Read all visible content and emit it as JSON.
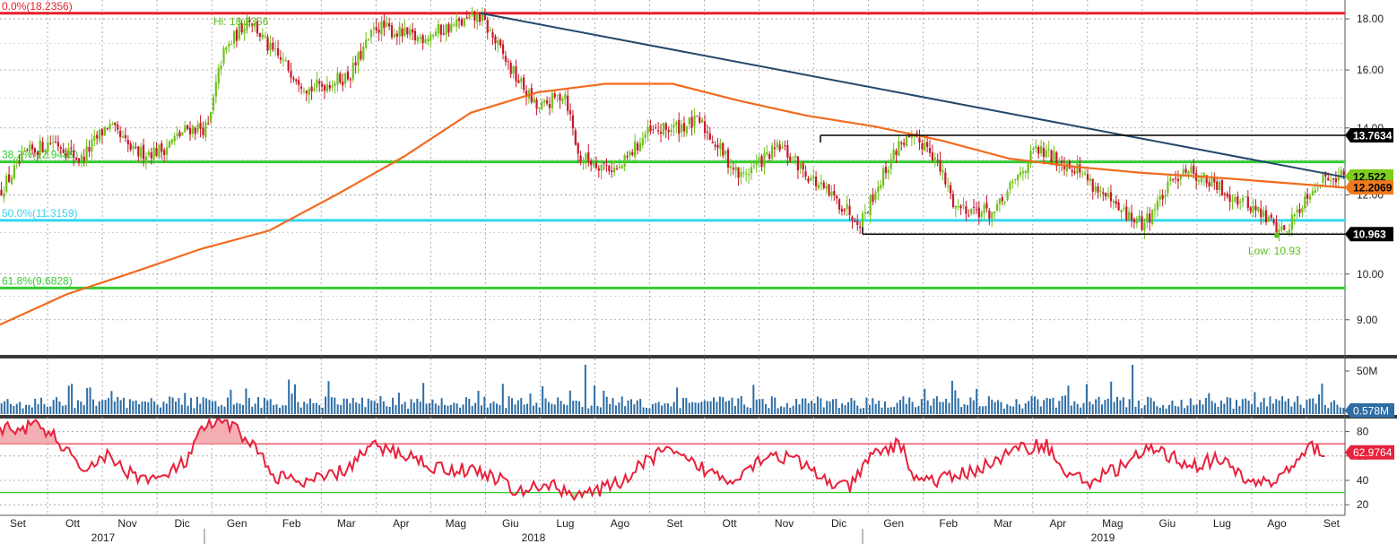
{
  "chart_data": {
    "type": "candlestick",
    "price_axis": {
      "ticks": [
        "18.00",
        "16.00",
        "14.00",
        "12.00",
        "10.00",
        "9.00"
      ],
      "range": [
        8.3,
        18.8
      ]
    },
    "fib_levels": [
      {
        "label": "0.0%(18.2356)",
        "value": 18.2356,
        "color": "#e8202a"
      },
      {
        "label": "38.2%(12.9489)",
        "value": 12.9489,
        "color": "#33cc33"
      },
      {
        "label": "50.0%(11.3159)",
        "value": 11.3159,
        "color": "#33d6f0"
      },
      {
        "label": "61.8%(9.6828)",
        "value": 9.6828,
        "color": "#33cc33"
      }
    ],
    "annotations": {
      "high": "Hi: 18.2356",
      "low": "Low: 10.93"
    },
    "price_tags": [
      {
        "text": "13.7634",
        "value": 13.7634,
        "bg": "#000000",
        "fg": "#ffffff"
      },
      {
        "text": "12.522",
        "value": 12.522,
        "bg": "#80cc1a",
        "fg": "#000000"
      },
      {
        "text": "12.2069",
        "value": 12.2069,
        "bg": "#f07a1e",
        "fg": "#000000"
      },
      {
        "text": "10.963",
        "value": 10.963,
        "bg": "#000000",
        "fg": "#ffffff"
      }
    ],
    "range_box": {
      "top": 13.7634,
      "bottom": 10.963
    },
    "trendline": {
      "from": [
        0.357,
        18.24
      ],
      "to": [
        1.0,
        12.5
      ]
    },
    "moving_average": [
      [
        0.0,
        8.9
      ],
      [
        0.05,
        9.55
      ],
      [
        0.1,
        10.05
      ],
      [
        0.15,
        10.6
      ],
      [
        0.2,
        11.05
      ],
      [
        0.25,
        12.0
      ],
      [
        0.3,
        13.1
      ],
      [
        0.35,
        14.5
      ],
      [
        0.4,
        15.2
      ],
      [
        0.45,
        15.5
      ],
      [
        0.5,
        15.5
      ],
      [
        0.55,
        14.9
      ],
      [
        0.6,
        14.4
      ],
      [
        0.65,
        14.05
      ],
      [
        0.7,
        13.6
      ],
      [
        0.75,
        13.05
      ],
      [
        0.8,
        12.8
      ],
      [
        0.85,
        12.62
      ],
      [
        0.9,
        12.5
      ],
      [
        0.95,
        12.35
      ],
      [
        1.0,
        12.2
      ]
    ],
    "price_path": [
      [
        0.0,
        12.1
      ],
      [
        0.02,
        13.2
      ],
      [
        0.04,
        13.6
      ],
      [
        0.06,
        13.0
      ],
      [
        0.08,
        14.1
      ],
      [
        0.1,
        13.2
      ],
      [
        0.12,
        13.3
      ],
      [
        0.14,
        14.0
      ],
      [
        0.155,
        14.0
      ],
      [
        0.165,
        16.5
      ],
      [
        0.185,
        18.1
      ],
      [
        0.2,
        16.8
      ],
      [
        0.23,
        15.3
      ],
      [
        0.26,
        15.8
      ],
      [
        0.28,
        17.7
      ],
      [
        0.31,
        17.2
      ],
      [
        0.357,
        18.1
      ],
      [
        0.38,
        16.0
      ],
      [
        0.4,
        14.6
      ],
      [
        0.42,
        15.2
      ],
      [
        0.43,
        13.1
      ],
      [
        0.46,
        12.7
      ],
      [
        0.48,
        13.8
      ],
      [
        0.52,
        14.2
      ],
      [
        0.55,
        12.5
      ],
      [
        0.58,
        13.4
      ],
      [
        0.61,
        12.2
      ],
      [
        0.64,
        11.3
      ],
      [
        0.67,
        13.6
      ],
      [
        0.69,
        13.5
      ],
      [
        0.71,
        11.7
      ],
      [
        0.74,
        11.5
      ],
      [
        0.77,
        13.3
      ],
      [
        0.8,
        12.8
      ],
      [
        0.83,
        11.6
      ],
      [
        0.85,
        11.2
      ],
      [
        0.88,
        12.8
      ],
      [
        0.91,
        12.1
      ],
      [
        0.93,
        11.7
      ],
      [
        0.955,
        11.0
      ],
      [
        0.975,
        12.2
      ],
      [
        0.99,
        12.6
      ],
      [
        1.0,
        12.52
      ]
    ],
    "volume": {
      "tag": "0.578M",
      "axis_label": "50M",
      "spikes": [
        0.436,
        0.842
      ]
    },
    "rsi": {
      "ticks": [
        "80",
        "60",
        "40",
        "20"
      ],
      "range": [
        15,
        90
      ],
      "overbought": 70,
      "oversold": 30,
      "tag": "62.9764",
      "path": [
        [
          0.0,
          82
        ],
        [
          0.03,
          84
        ],
        [
          0.045,
          72
        ],
        [
          0.06,
          48
        ],
        [
          0.08,
          60
        ],
        [
          0.1,
          45
        ],
        [
          0.12,
          40
        ],
        [
          0.14,
          55
        ],
        [
          0.155,
          85
        ],
        [
          0.17,
          87
        ],
        [
          0.19,
          72
        ],
        [
          0.205,
          45
        ],
        [
          0.23,
          37
        ],
        [
          0.26,
          48
        ],
        [
          0.28,
          68
        ],
        [
          0.31,
          60
        ],
        [
          0.33,
          50
        ],
        [
          0.36,
          48
        ],
        [
          0.38,
          40
        ],
        [
          0.39,
          28
        ],
        [
          0.41,
          38
        ],
        [
          0.43,
          30
        ],
        [
          0.45,
          30
        ],
        [
          0.47,
          40
        ],
        [
          0.5,
          65
        ],
        [
          0.53,
          50
        ],
        [
          0.55,
          40
        ],
        [
          0.58,
          62
        ],
        [
          0.6,
          57
        ],
        [
          0.62,
          42
        ],
        [
          0.64,
          33
        ],
        [
          0.66,
          62
        ],
        [
          0.68,
          70
        ],
        [
          0.69,
          42
        ],
        [
          0.71,
          40
        ],
        [
          0.74,
          50
        ],
        [
          0.77,
          66
        ],
        [
          0.79,
          70
        ],
        [
          0.8,
          50
        ],
        [
          0.82,
          38
        ],
        [
          0.84,
          48
        ],
        [
          0.87,
          66
        ],
        [
          0.9,
          52
        ],
        [
          0.92,
          58
        ],
        [
          0.94,
          40
        ],
        [
          0.96,
          38
        ],
        [
          0.98,
          55
        ],
        [
          0.99,
          68
        ],
        [
          1.0,
          63
        ]
      ]
    },
    "x_axis": {
      "months": [
        "Set",
        "Ott",
        "Nov",
        "Dic",
        "Gen",
        "Feb",
        "Mar",
        "Apr",
        "Mag",
        "Giu",
        "Lug",
        "Ago",
        "Set",
        "Ott",
        "Nov",
        "Dic",
        "Gen",
        "Feb",
        "Mar",
        "Apr",
        "Mag",
        "Giu",
        "Lug",
        "Ago",
        "Set"
      ],
      "years": [
        "2017",
        "2018",
        "2019"
      ]
    },
    "colors": {
      "up": "#70c21c",
      "down": "#c8172b",
      "ma": "#f26b1d",
      "trend": "#23476b",
      "volume": "#2e6da4",
      "rsi": "#e8213c"
    },
    "grid": true
  }
}
